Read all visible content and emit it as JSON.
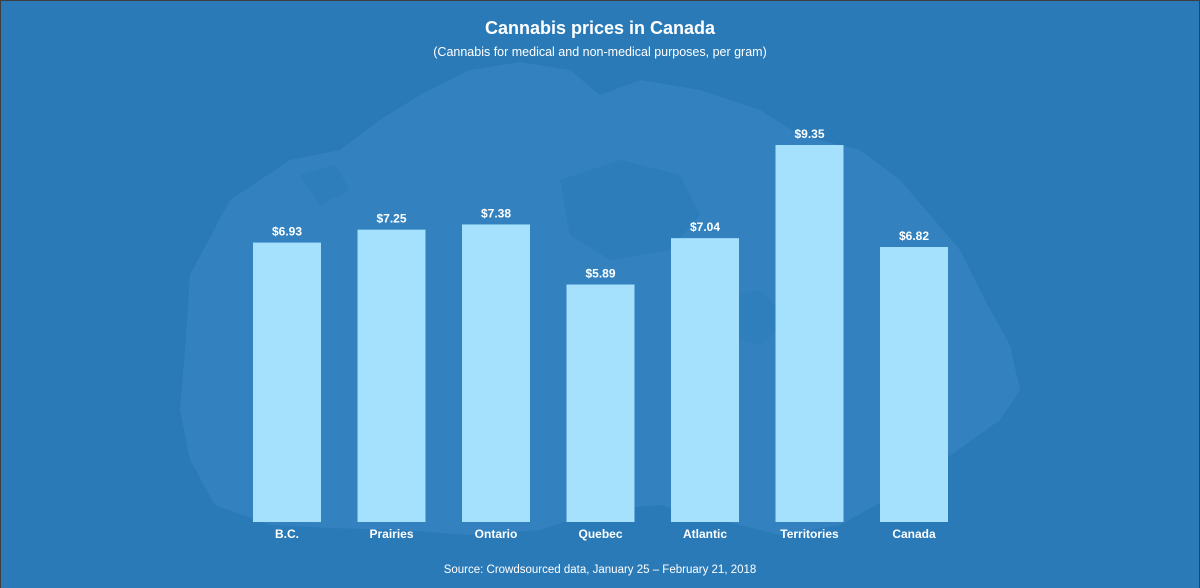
{
  "title": "Cannabis prices in Canada",
  "subtitle": "(Cannabis for medical and non-medical purposes, per gram)",
  "source": "Source: Crowdsourced data, January 25 – February 21, 2018",
  "colors": {
    "background": "#2a7ab8",
    "bar": "#a5e0fd",
    "text": "#ffffff"
  },
  "chart_data": {
    "type": "bar",
    "title": "Cannabis prices in Canada",
    "subtitle": "(Cannabis for medical and non-medical purposes, per gram)",
    "categories": [
      "B.C.",
      "Prairies",
      "Ontario",
      "Quebec",
      "Atlantic",
      "Territories",
      "Canada"
    ],
    "values": [
      6.93,
      7.25,
      7.38,
      5.89,
      7.04,
      9.35,
      6.82
    ],
    "value_labels": [
      "$6.93",
      "$7.25",
      "$7.38",
      "$5.89",
      "$7.04",
      "$9.35",
      "$6.82"
    ],
    "xlabel": "",
    "ylabel": "",
    "ylim": [
      0,
      9.35
    ],
    "grid": false,
    "legend": "none"
  }
}
